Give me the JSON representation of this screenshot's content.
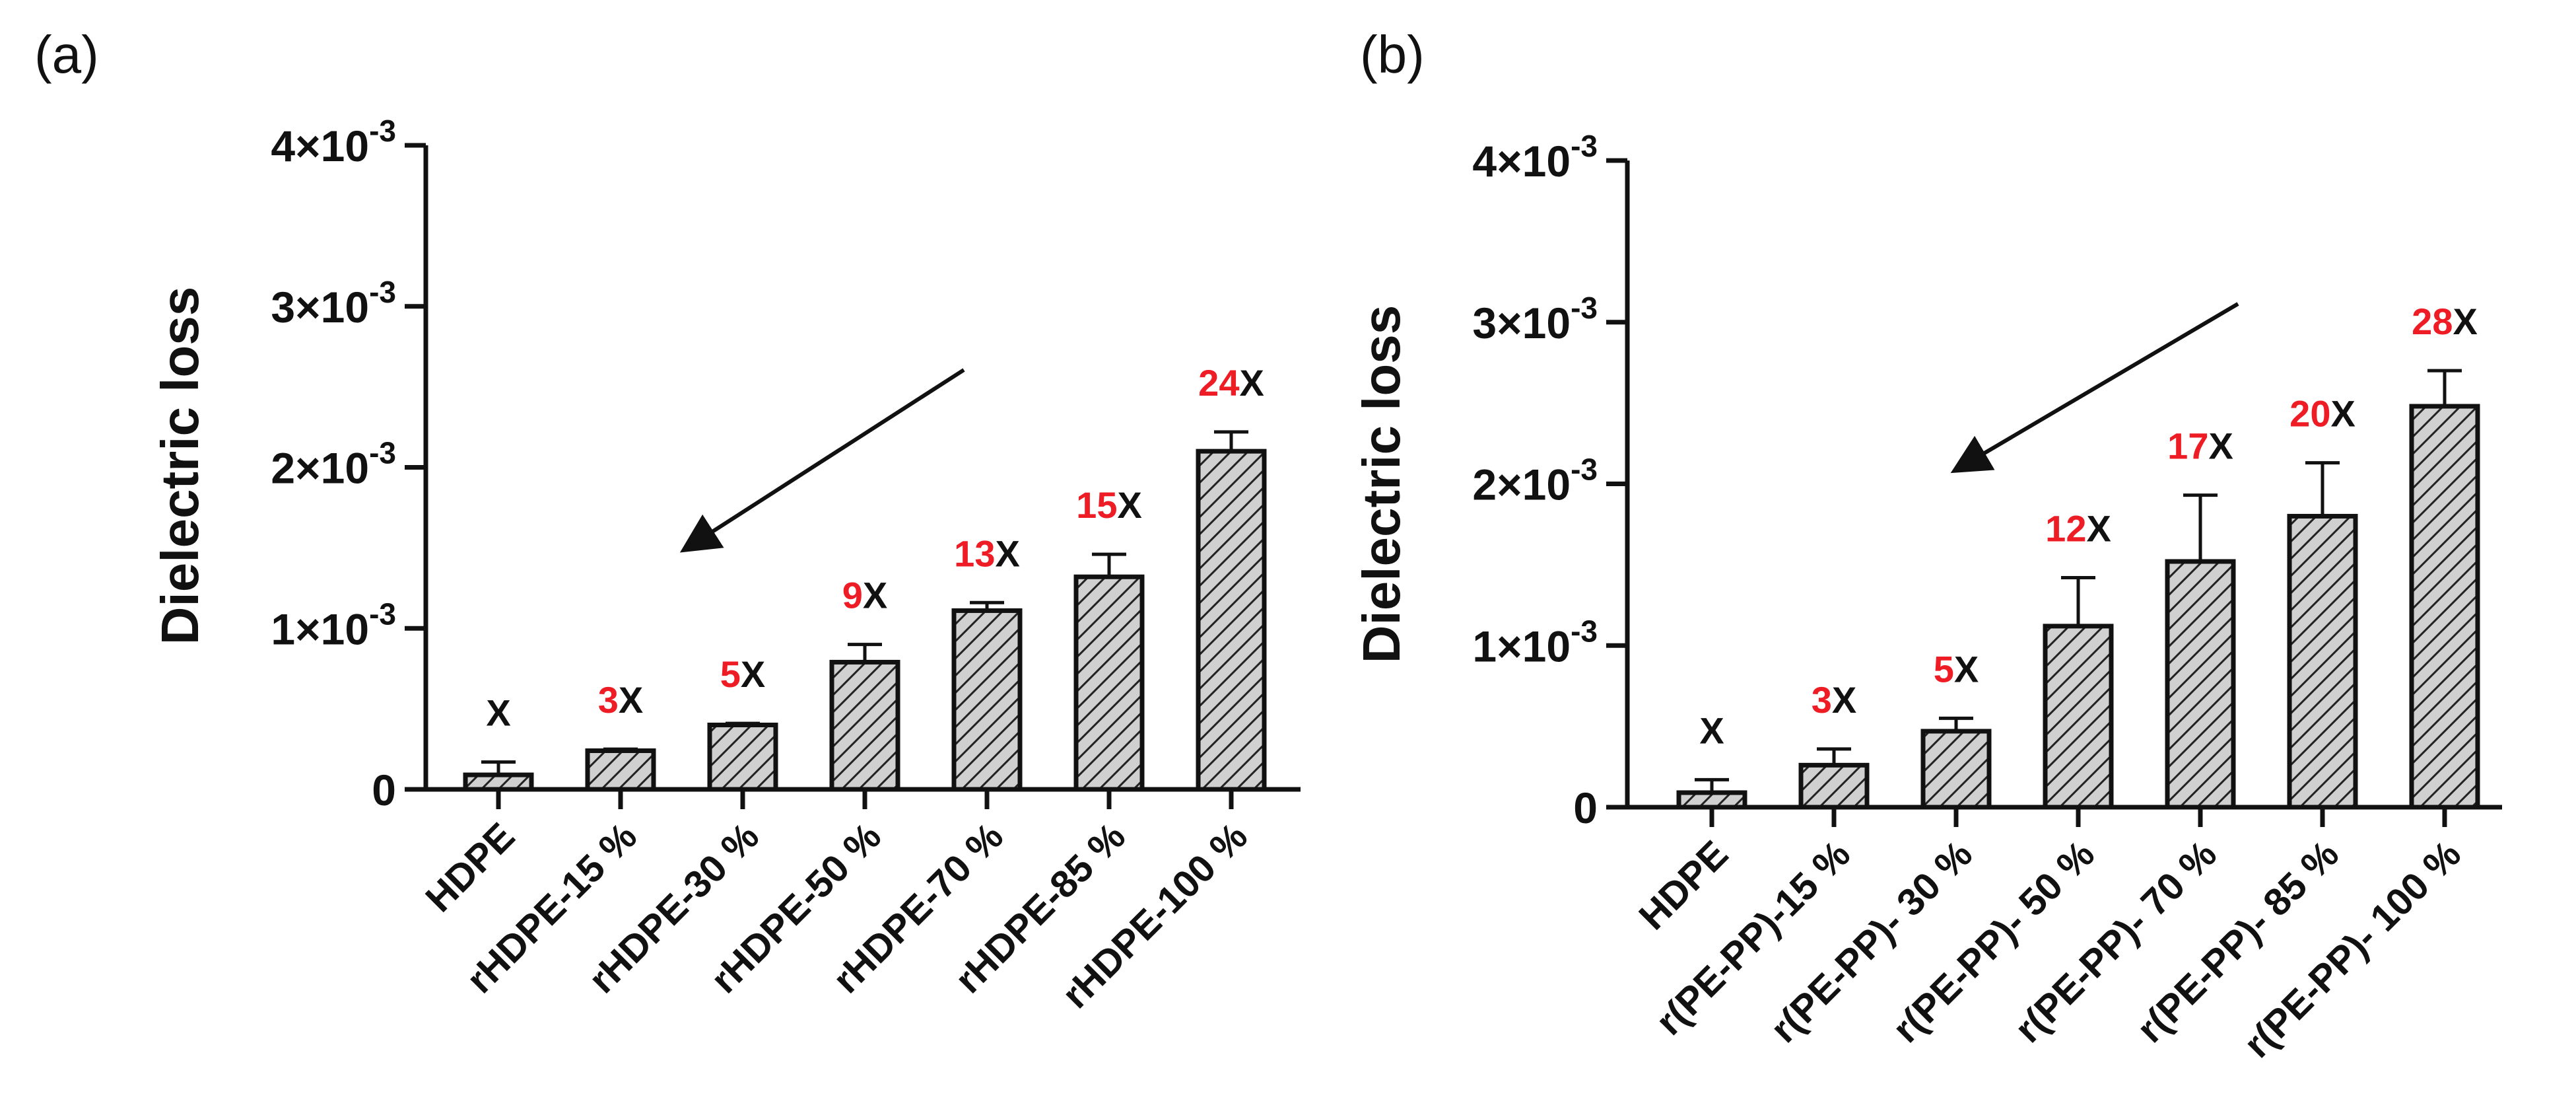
{
  "colors": {
    "bar_fill": "#d0d0d0",
    "axis": "#111111",
    "highlight": "#ee1c25",
    "text": "#111111"
  },
  "chart_data": [
    {
      "panel_label": "(a)",
      "type": "bar",
      "ylabel": "Dielectric loss",
      "ylim": [
        0,
        0.004
      ],
      "yticks": [
        {
          "value": 0,
          "mantissa": "0",
          "exponent": ""
        },
        {
          "value": 0.001,
          "mantissa": "1×10",
          "exponent": "-3"
        },
        {
          "value": 0.002,
          "mantissa": "2×10",
          "exponent": "-3"
        },
        {
          "value": 0.003,
          "mantissa": "3×10",
          "exponent": "-3"
        },
        {
          "value": 0.004,
          "mantissa": "4×10",
          "exponent": "-3"
        }
      ],
      "categories": [
        "HDPE",
        "rHDPE-15 %",
        "rHDPE-30 %",
        "rHDPE-50 %",
        "rHDPE-70 %",
        "rHDPE-85 %",
        "rHDPE-100 %"
      ],
      "values": [
        9e-05,
        0.00024,
        0.0004,
        0.00079,
        0.00111,
        0.00132,
        0.0021
      ],
      "errors": [
        8e-05,
        1e-05,
        1e-05,
        0.00011,
        5e-05,
        0.00014,
        0.00012
      ],
      "annotations": [
        {
          "number": "",
          "suffix": "X"
        },
        {
          "number": "3",
          "suffix": "X"
        },
        {
          "number": "5",
          "suffix": "X"
        },
        {
          "number": "9",
          "suffix": "X"
        },
        {
          "number": "13",
          "suffix": "X"
        },
        {
          "number": "15",
          "suffix": "X"
        },
        {
          "number": "24",
          "suffix": "X"
        }
      ],
      "trend_arrow": "downward-left"
    },
    {
      "panel_label": "(b)",
      "type": "bar",
      "ylabel": "Dielectric loss",
      "ylim": [
        0,
        0.004
      ],
      "yticks": [
        {
          "value": 0,
          "mantissa": "0",
          "exponent": ""
        },
        {
          "value": 0.001,
          "mantissa": "1×10",
          "exponent": "-3"
        },
        {
          "value": 0.002,
          "mantissa": "2×10",
          "exponent": "-3"
        },
        {
          "value": 0.003,
          "mantissa": "3×10",
          "exponent": "-3"
        },
        {
          "value": 0.004,
          "mantissa": "4×10",
          "exponent": "-3"
        }
      ],
      "categories": [
        "HDPE",
        "r(PE-PP)-15 %",
        "r(PE-PP)- 30 %",
        "r(PE-PP)- 50 %",
        "r(PE-PP)- 70 %",
        "r(PE-PP)- 85 %",
        "r(PE-PP)- 100 %"
      ],
      "values": [
        9e-05,
        0.00026,
        0.00047,
        0.00112,
        0.00152,
        0.0018,
        0.00248
      ],
      "errors": [
        8e-05,
        0.0001,
        8e-05,
        0.0003,
        0.00041,
        0.00033,
        0.00022
      ],
      "annotations": [
        {
          "number": "",
          "suffix": "X"
        },
        {
          "number": "3",
          "suffix": "X"
        },
        {
          "number": "5",
          "suffix": "X"
        },
        {
          "number": "12",
          "suffix": "X"
        },
        {
          "number": "17",
          "suffix": "X"
        },
        {
          "number": "20",
          "suffix": "X"
        },
        {
          "number": "28",
          "suffix": "X"
        }
      ],
      "trend_arrow": "downward-left"
    }
  ]
}
